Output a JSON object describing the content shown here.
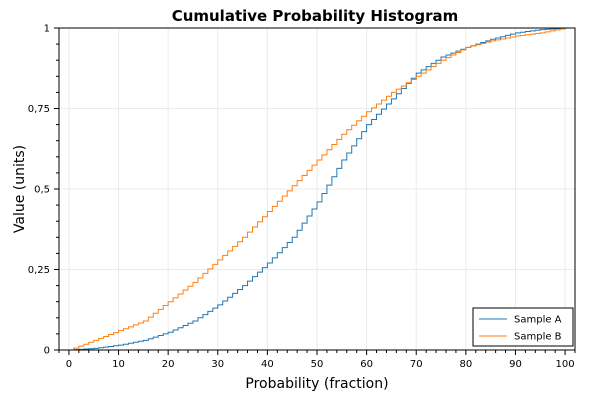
{
  "chart_data": {
    "type": "line",
    "step": true,
    "title": "Cumulative Probability Histogram",
    "xlabel": "Probability (fraction)",
    "ylabel": "Value (units)",
    "xlim": [
      -2,
      102
    ],
    "ylim": [
      0,
      1
    ],
    "x_ticks": [
      0,
      10,
      20,
      30,
      40,
      50,
      60,
      70,
      80,
      90,
      100
    ],
    "y_ticks": [
      0,
      0.25,
      0.5,
      0.75,
      1
    ],
    "y_tick_labels": [
      "0",
      "0,25",
      "0,5",
      "0,75",
      "1"
    ],
    "grid": true,
    "legend_position": "bottom-right",
    "series": [
      {
        "name": "Sample A",
        "color": "#1f77b4",
        "x": [
          0,
          5,
          10,
          15,
          20,
          25,
          30,
          35,
          40,
          45,
          50,
          55,
          60,
          65,
          70,
          75,
          80,
          85,
          90,
          95,
          100
        ],
        "values": [
          0.0,
          0.005,
          0.015,
          0.03,
          0.055,
          0.09,
          0.14,
          0.2,
          0.27,
          0.35,
          0.46,
          0.59,
          0.7,
          0.78,
          0.86,
          0.91,
          0.94,
          0.965,
          0.985,
          0.995,
          1.0
        ]
      },
      {
        "name": "Sample B",
        "color": "#ff7f0e",
        "x": [
          0,
          5,
          10,
          15,
          20,
          25,
          30,
          35,
          40,
          45,
          50,
          55,
          60,
          65,
          70,
          75,
          80,
          85,
          90,
          95,
          100
        ],
        "values": [
          0.0,
          0.03,
          0.06,
          0.09,
          0.15,
          0.21,
          0.28,
          0.35,
          0.43,
          0.51,
          0.59,
          0.67,
          0.74,
          0.8,
          0.85,
          0.9,
          0.94,
          0.96,
          0.975,
          0.985,
          1.0
        ]
      }
    ]
  }
}
